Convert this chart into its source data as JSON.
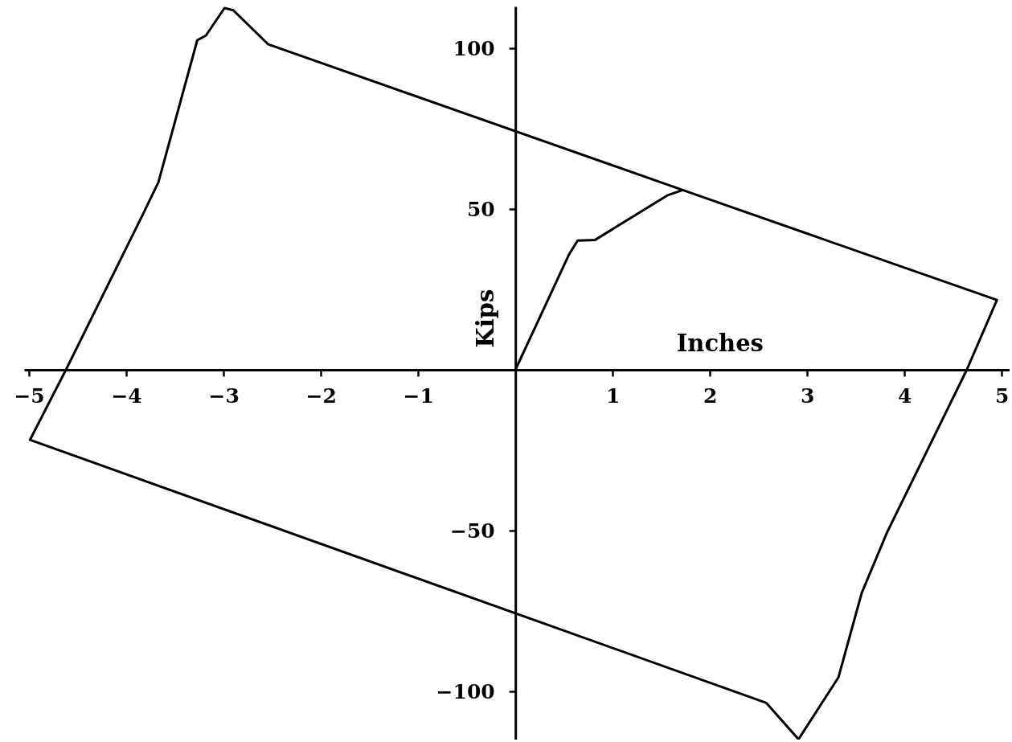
{
  "chart_data": {
    "type": "line",
    "xlabel": "Inches",
    "ylabel": "Kips",
    "xlim": [
      -5.05,
      5.08
    ],
    "ylim": [
      -115,
      113
    ],
    "xticks": [
      -5,
      -4,
      -3,
      -2,
      -1,
      1,
      2,
      3,
      4,
      5
    ],
    "yticks": [
      -100,
      -50,
      50,
      100
    ],
    "grid": false,
    "marker": "none",
    "line_style": "solid",
    "series": [
      {
        "color": "#000000",
        "x": [
          0,
          0.55,
          0.64,
          0.82,
          1.56,
          1.72,
          4.95,
          4.64,
          3.82,
          3.56,
          3.32,
          2.91,
          2.58,
          -4.99,
          -4.62,
          -3.83,
          -3.67,
          -3.27,
          -3.18,
          -2.99,
          -2.9,
          -2.54,
          1.72
        ],
        "values": [
          0,
          35.8,
          40.2,
          40.4,
          54.2,
          55.9,
          21.7,
          0,
          -50.6,
          -69.4,
          -95.7,
          -114.9,
          -103.6,
          -21.8,
          0,
          48.3,
          58.3,
          102.5,
          104,
          112.5,
          111.8,
          101.2,
          55.9
        ]
      }
    ]
  }
}
